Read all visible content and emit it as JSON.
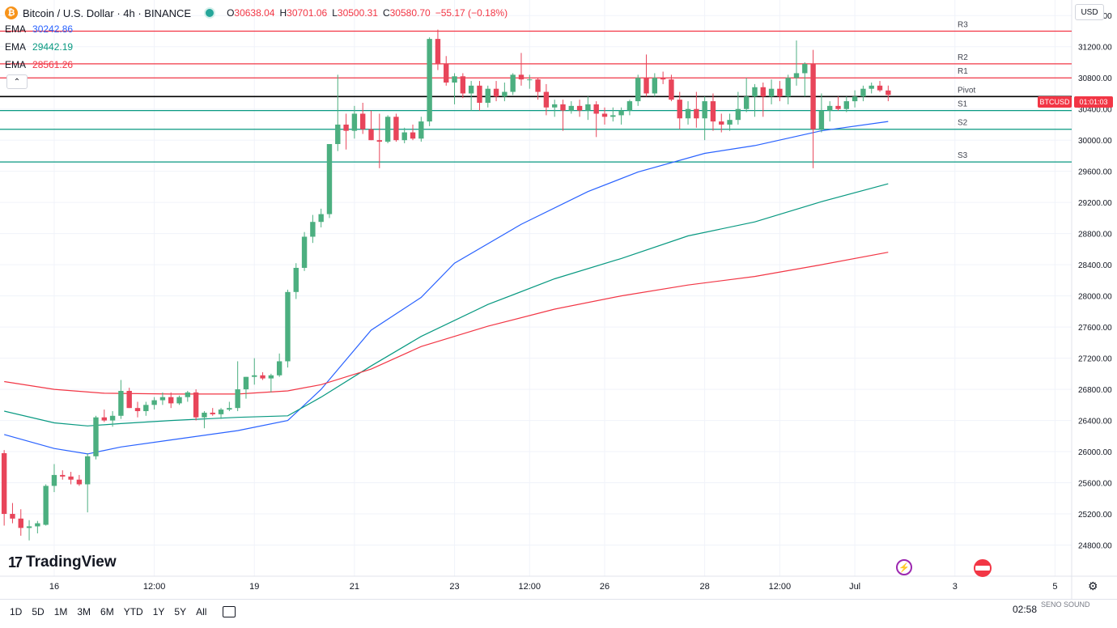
{
  "header": {
    "symbol_title": "Bitcoin / U.S. Dollar · 4h · BINANCE",
    "icon": "bitcoin-icon",
    "ohlc": [
      {
        "k": "O",
        "v": "30638.04"
      },
      {
        "k": "H",
        "v": "30701.06"
      },
      {
        "k": "L",
        "v": "30500.31"
      },
      {
        "k": "C",
        "v": "30580.70"
      },
      {
        "k": "",
        "v": "−55.17 (−0.18%)"
      }
    ]
  },
  "emas": [
    {
      "label": "EMA",
      "value": "30242.86",
      "color": "#2962ff"
    },
    {
      "label": "EMA",
      "value": "29442.19",
      "color": "#089981"
    },
    {
      "label": "EMA",
      "value": "28561.26",
      "color": "#f23645"
    }
  ],
  "currency": "USD",
  "price_tag": {
    "symbol": "BTCUSD",
    "timer": "01:01:03",
    "color": "#f23645"
  },
  "logo_text": "TradingView",
  "timeframes": [
    "1D",
    "5D",
    "1M",
    "3M",
    "6M",
    "YTD",
    "1Y",
    "5Y",
    "All"
  ],
  "clock": "02:58",
  "watermark": "SENO SOUND",
  "chart_data": {
    "type": "candlestick",
    "title": "Bitcoin / U.S. Dollar · 4h · BINANCE",
    "ylim": [
      24400,
      31800
    ],
    "y_ticks": [
      24800,
      25200,
      25600,
      26000,
      26400,
      26800,
      27200,
      27600,
      28000,
      28400,
      28800,
      29200,
      29600,
      30000,
      30400,
      30800,
      31200,
      31600
    ],
    "x_ticks": [
      {
        "label": "16",
        "x": 0.0
      },
      {
        "label": "12:00",
        "x": 12.0
      },
      {
        "label": "19",
        "x": 24.0
      },
      {
        "label": "21",
        "x": 36.0
      },
      {
        "label": "23",
        "x": 48.0
      },
      {
        "label": "12:00",
        "x": 57.0
      },
      {
        "label": "26",
        "x": 66.0
      },
      {
        "label": "28",
        "x": 78.0
      },
      {
        "label": "12:00",
        "x": 87.0
      },
      {
        "label": "Jul",
        "x": 96.0
      },
      {
        "label": "3",
        "x": 108.0
      },
      {
        "label": "5",
        "x": 120.0
      }
    ],
    "x_range": [
      -6.5,
      122
    ],
    "candles": [
      [
        -6,
        25980,
        26020,
        25050,
        25200
      ],
      [
        -5,
        25200,
        25340,
        25080,
        25140
      ],
      [
        -4,
        25140,
        25260,
        24920,
        25020
      ],
      [
        -3,
        25020,
        25120,
        24860,
        25040
      ],
      [
        -2,
        25040,
        25110,
        24950,
        25080
      ],
      [
        -1,
        25060,
        25580,
        25050,
        25560
      ],
      [
        0,
        25560,
        25840,
        25480,
        25700
      ],
      [
        1,
        25700,
        25760,
        25640,
        25680
      ],
      [
        2,
        25680,
        25740,
        25580,
        25640
      ],
      [
        3,
        25640,
        25700,
        25560,
        25580
      ],
      [
        4,
        25580,
        25980,
        25220,
        25940
      ],
      [
        5,
        25940,
        26460,
        25900,
        26440
      ],
      [
        6,
        26440,
        26540,
        26380,
        26400
      ],
      [
        7,
        26400,
        26520,
        26320,
        26460
      ],
      [
        8,
        26460,
        26920,
        26420,
        26780
      ],
      [
        9,
        26780,
        26820,
        26560,
        26560
      ],
      [
        10,
        26560,
        26640,
        26440,
        26520
      ],
      [
        11,
        26520,
        26640,
        26460,
        26600
      ],
      [
        12,
        26600,
        26700,
        26540,
        26660
      ],
      [
        13,
        26660,
        26760,
        26600,
        26700
      ],
      [
        14,
        26700,
        26760,
        26560,
        26620
      ],
      [
        15,
        26620,
        26720,
        26600,
        26700
      ],
      [
        16,
        26700,
        26780,
        26640,
        26760
      ],
      [
        17,
        26760,
        26800,
        26400,
        26440
      ],
      [
        18,
        26440,
        26520,
        26300,
        26500
      ],
      [
        19,
        26500,
        26560,
        26460,
        26480
      ],
      [
        20,
        26480,
        26560,
        26420,
        26540
      ],
      [
        21,
        26540,
        26640,
        26520,
        26560
      ],
      [
        22,
        26560,
        27160,
        26520,
        26800
      ],
      [
        23,
        26800,
        26960,
        26680,
        26960
      ],
      [
        24,
        26960,
        27200,
        26860,
        26980
      ],
      [
        25,
        26980,
        27020,
        26920,
        26940
      ],
      [
        26,
        26940,
        27000,
        26760,
        26980
      ],
      [
        27,
        26980,
        27260,
        26960,
        27160
      ],
      [
        28,
        27160,
        28080,
        27080,
        28050
      ],
      [
        29,
        28050,
        28420,
        27960,
        28360
      ],
      [
        30,
        28360,
        28820,
        28320,
        28760
      ],
      [
        31,
        28760,
        29040,
        28680,
        28950
      ],
      [
        32,
        28950,
        29120,
        28880,
        29050
      ],
      [
        33,
        29050,
        29940,
        29000,
        29950
      ],
      [
        34,
        29950,
        30840,
        29860,
        30200
      ],
      [
        35,
        30200,
        30340,
        29880,
        30120
      ],
      [
        36,
        30120,
        30440,
        30020,
        30340
      ],
      [
        37,
        30340,
        30480,
        30080,
        30140
      ],
      [
        38,
        30140,
        30380,
        30000,
        30000
      ],
      [
        39,
        30000,
        30340,
        29640,
        29980
      ],
      [
        40,
        29980,
        30320,
        29960,
        30300
      ],
      [
        41,
        30300,
        30340,
        29980,
        30000
      ],
      [
        42,
        30000,
        30160,
        29960,
        30100
      ],
      [
        43,
        30100,
        30200,
        30000,
        30020
      ],
      [
        44,
        30020,
        30300,
        29980,
        30240
      ],
      [
        45,
        30240,
        31320,
        30180,
        31300
      ],
      [
        46,
        31300,
        31420,
        30900,
        30980
      ],
      [
        47,
        30980,
        31080,
        30700,
        30740
      ],
      [
        48,
        30740,
        30860,
        30460,
        30820
      ],
      [
        49,
        30820,
        30860,
        30540,
        30600
      ],
      [
        50,
        30600,
        30760,
        30380,
        30700
      ],
      [
        51,
        30700,
        30760,
        30380,
        30480
      ],
      [
        52,
        30480,
        30700,
        30420,
        30660
      ],
      [
        53,
        30660,
        30760,
        30500,
        30560
      ],
      [
        54,
        30560,
        30740,
        30500,
        30620
      ],
      [
        55,
        30620,
        30860,
        30580,
        30840
      ],
      [
        56,
        30840,
        31120,
        30700,
        30780
      ],
      [
        57,
        30780,
        30840,
        30660,
        30780
      ],
      [
        58,
        30780,
        30800,
        30520,
        30620
      ],
      [
        59,
        30620,
        30720,
        30320,
        30420
      ],
      [
        60,
        30420,
        30520,
        30300,
        30460
      ],
      [
        61,
        30460,
        30520,
        30120,
        30380
      ],
      [
        62,
        30380,
        30500,
        30340,
        30440
      ],
      [
        63,
        30440,
        30520,
        30300,
        30380
      ],
      [
        64,
        30380,
        30560,
        30260,
        30460
      ],
      [
        65,
        30460,
        30500,
        30040,
        30340
      ],
      [
        66,
        30340,
        30420,
        30200,
        30300
      ],
      [
        67,
        30300,
        30420,
        30240,
        30320
      ],
      [
        68,
        30320,
        30420,
        30200,
        30380
      ],
      [
        69,
        30380,
        30520,
        30320,
        30500
      ],
      [
        70,
        30500,
        30840,
        30440,
        30800
      ],
      [
        71,
        30800,
        31100,
        30560,
        30600
      ],
      [
        72,
        30600,
        30860,
        30560,
        30800
      ],
      [
        73,
        30800,
        30880,
        30720,
        30780
      ],
      [
        74,
        30780,
        30840,
        30500,
        30520
      ],
      [
        75,
        30520,
        30620,
        30140,
        30280
      ],
      [
        76,
        30280,
        30500,
        30200,
        30400
      ],
      [
        77,
        30400,
        30620,
        30160,
        30280
      ],
      [
        78,
        30280,
        30560,
        30000,
        30500
      ],
      [
        79,
        30500,
        30600,
        30120,
        30240
      ],
      [
        80,
        30240,
        30340,
        30100,
        30200
      ],
      [
        81,
        30200,
        30340,
        30120,
        30260
      ],
      [
        82,
        30260,
        30620,
        30200,
        30400
      ],
      [
        83,
        30400,
        30800,
        30360,
        30560
      ],
      [
        84,
        30560,
        30720,
        30300,
        30680
      ],
      [
        85,
        30680,
        30740,
        30300,
        30560
      ],
      [
        86,
        30560,
        30780,
        30460,
        30660
      ],
      [
        87,
        30660,
        30760,
        30500,
        30560
      ],
      [
        88,
        30560,
        30840,
        30460,
        30800
      ],
      [
        89,
        30800,
        31280,
        30700,
        30860
      ],
      [
        90,
        30860,
        31000,
        30560,
        30980
      ],
      [
        91,
        30980,
        31160,
        29640,
        30140
      ],
      [
        92,
        30140,
        30600,
        30100,
        30380
      ],
      [
        93,
        30380,
        30500,
        30240,
        30440
      ],
      [
        94,
        30440,
        30560,
        30380,
        30400
      ],
      [
        95,
        30400,
        30560,
        30360,
        30500
      ],
      [
        96,
        30500,
        30640,
        30420,
        30560
      ],
      [
        97,
        30560,
        30700,
        30500,
        30660
      ],
      [
        98,
        30660,
        30740,
        30600,
        30700
      ],
      [
        99,
        30700,
        30760,
        30620,
        30640
      ],
      [
        100,
        30638.04,
        30701.06,
        30500.31,
        30580.7
      ]
    ],
    "series": [
      {
        "name": "EMA",
        "color": "#2962ff",
        "points": [
          [
            -6,
            26220
          ],
          [
            0,
            26040
          ],
          [
            4,
            25970
          ],
          [
            8,
            26060
          ],
          [
            14,
            26150
          ],
          [
            22,
            26270
          ],
          [
            28,
            26400
          ],
          [
            32,
            26800
          ],
          [
            38,
            27560
          ],
          [
            44,
            27980
          ],
          [
            48,
            28420
          ],
          [
            56,
            28920
          ],
          [
            64,
            29340
          ],
          [
            70,
            29590
          ],
          [
            78,
            29830
          ],
          [
            84,
            29930
          ],
          [
            92,
            30120
          ],
          [
            100,
            30240
          ]
        ]
      },
      {
        "name": "EMA",
        "color": "#089981",
        "points": [
          [
            -6,
            26520
          ],
          [
            0,
            26370
          ],
          [
            4,
            26330
          ],
          [
            8,
            26360
          ],
          [
            14,
            26400
          ],
          [
            22,
            26440
          ],
          [
            28,
            26460
          ],
          [
            32,
            26700
          ],
          [
            38,
            27100
          ],
          [
            44,
            27480
          ],
          [
            52,
            27890
          ],
          [
            60,
            28220
          ],
          [
            68,
            28480
          ],
          [
            76,
            28770
          ],
          [
            84,
            28950
          ],
          [
            92,
            29210
          ],
          [
            100,
            29440
          ]
        ]
      },
      {
        "name": "EMA",
        "color": "#f23645",
        "points": [
          [
            -6,
            26900
          ],
          [
            0,
            26800
          ],
          [
            6,
            26750
          ],
          [
            14,
            26740
          ],
          [
            22,
            26740
          ],
          [
            28,
            26780
          ],
          [
            32,
            26860
          ],
          [
            38,
            27060
          ],
          [
            44,
            27350
          ],
          [
            52,
            27610
          ],
          [
            60,
            27830
          ],
          [
            68,
            28000
          ],
          [
            76,
            28140
          ],
          [
            84,
            28250
          ],
          [
            92,
            28400
          ],
          [
            100,
            28560
          ]
        ]
      }
    ],
    "pivot_levels": [
      {
        "label": "R3",
        "value": 31400,
        "color": "#f23645"
      },
      {
        "label": "R2",
        "value": 30980,
        "color": "#f23645"
      },
      {
        "label": "R1",
        "value": 30800,
        "color": "#f23645"
      },
      {
        "label": "Pivot",
        "value": 30560,
        "color": "#000000"
      },
      {
        "label": "S1",
        "value": 30380,
        "color": "#089981"
      },
      {
        "label": "S2",
        "value": 30140,
        "color": "#089981"
      },
      {
        "label": "S3",
        "value": 29720,
        "color": "#089981"
      }
    ],
    "up_color": "#4caf80",
    "down_color": "#e8455a",
    "grid": true
  }
}
